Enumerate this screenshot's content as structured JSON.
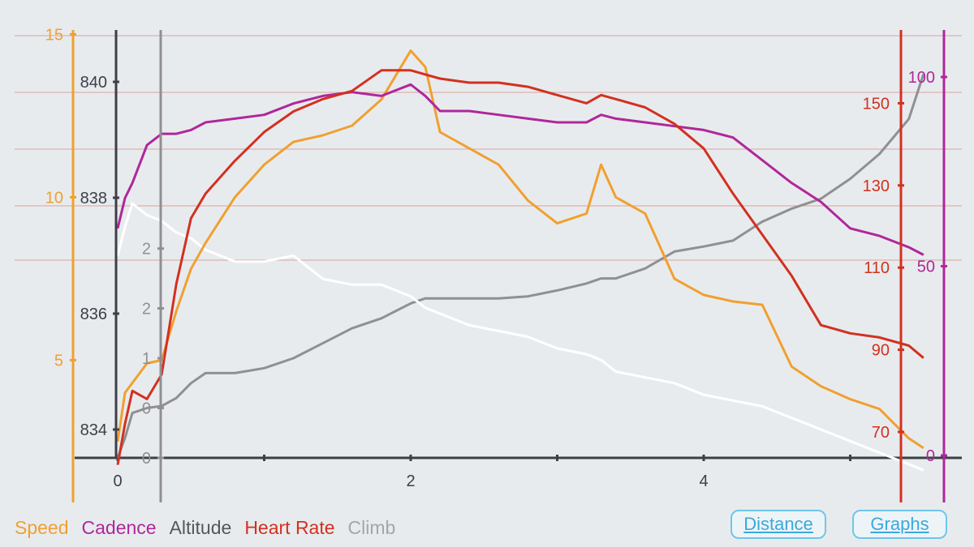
{
  "chart_data": {
    "type": "line",
    "x": [
      0,
      0.05,
      0.1,
      0.2,
      0.3,
      0.4,
      0.5,
      0.6,
      0.8,
      1.0,
      1.2,
      1.4,
      1.6,
      1.8,
      2.0,
      2.1,
      2.2,
      2.4,
      2.6,
      2.8,
      3.0,
      3.2,
      3.3,
      3.4,
      3.6,
      3.8,
      4.0,
      4.2,
      4.4,
      4.6,
      4.8,
      5.0,
      5.2,
      5.4,
      5.5
    ],
    "xticks": [
      "0",
      "2",
      "4"
    ],
    "series": [
      {
        "name": "Speed",
        "color": "#f0a030",
        "axis": "speed",
        "values": [
          2.5,
          4.0,
          4.3,
          4.9,
          5.0,
          6.5,
          7.8,
          8.6,
          10.0,
          11.0,
          11.7,
          11.9,
          12.2,
          13.0,
          14.5,
          14.0,
          12.0,
          11.5,
          11.0,
          9.9,
          9.2,
          9.5,
          11.0,
          10.0,
          9.5,
          7.5,
          7.0,
          6.8,
          6.7,
          4.8,
          4.2,
          3.8,
          3.5,
          2.6,
          2.3
        ]
      },
      {
        "name": "Cadence",
        "color": "#b0279a",
        "axis": "cadence",
        "values": [
          60,
          68,
          72,
          82,
          85,
          85,
          86,
          88,
          89,
          90,
          93,
          95,
          96,
          95,
          98,
          95,
          91,
          91,
          90,
          89,
          88,
          88,
          90,
          89,
          88,
          87,
          86,
          84,
          78,
          72,
          67,
          60,
          58,
          55,
          53
        ]
      },
      {
        "name": "Altitude",
        "color": "#3d3f47",
        "axis": "altitude",
        "values": [
          837,
          837.5,
          837.9,
          837.7,
          837.6,
          837.4,
          837.3,
          837.1,
          836.9,
          836.9,
          837.0,
          836.6,
          836.5,
          836.5,
          836.3,
          836.1,
          836.0,
          835.8,
          835.7,
          835.6,
          835.4,
          835.3,
          835.2,
          835.0,
          834.9,
          834.8,
          834.6,
          834.5,
          834.4,
          834.2,
          834.0,
          833.8,
          833.6,
          833.4,
          833.3
        ]
      },
      {
        "name": "Heart Rate",
        "color": "#d2311f",
        "axis": "hr",
        "values": [
          62,
          72,
          80,
          78,
          84,
          106,
          122,
          128,
          136,
          143,
          148,
          151,
          153,
          158,
          158,
          157,
          156,
          155,
          155,
          154,
          152,
          150,
          152,
          151,
          149,
          145,
          139,
          128,
          118,
          108,
          96,
          94,
          93,
          91,
          88
        ]
      },
      {
        "name": "Climb",
        "color": "#8f8f94",
        "axis": "climb",
        "values": [
          0,
          0.2,
          0.45,
          0.5,
          0.52,
          0.6,
          0.75,
          0.85,
          0.85,
          0.9,
          1.0,
          1.15,
          1.3,
          1.4,
          1.55,
          1.6,
          1.6,
          1.6,
          1.6,
          1.62,
          1.68,
          1.75,
          1.8,
          1.8,
          1.9,
          2.07,
          2.12,
          2.18,
          2.37,
          2.5,
          2.6,
          2.8,
          3.05,
          3.4,
          3.85
        ]
      }
    ],
    "axes": {
      "speed": {
        "range": [
          0,
          16.2
        ],
        "ticks": [
          "5",
          "10",
          "15"
        ],
        "color": "#f0a030"
      },
      "altitude": {
        "range": [
          833.0,
          841.2
        ],
        "ticks": [
          "834",
          "836",
          "838",
          "840"
        ],
        "color": "#3d3f47"
      },
      "climb": {
        "range": [
          0,
          3.99
        ],
        "ticks": [
          "0",
          "0",
          "1",
          "2",
          "2"
        ],
        "color": "#8f8f94"
      },
      "hr": {
        "range": [
          60,
          172
        ],
        "ticks": [
          "70",
          "90",
          "110",
          "130",
          "150"
        ],
        "color": "#d2311f"
      },
      "cadence": {
        "range": [
          0,
          108
        ],
        "ticks": [
          "0",
          "50",
          "100"
        ],
        "color": "#b0279a"
      }
    },
    "grid": true,
    "legend_position": "bottom-left"
  },
  "legend": [
    {
      "label": "Speed",
      "color": "#f0a030"
    },
    {
      "label": "Cadence",
      "color": "#b0279a"
    },
    {
      "label": "Altitude",
      "color": "#3d3f47"
    },
    {
      "label": "Heart Rate",
      "color": "#d2311f"
    },
    {
      "label": "Climb",
      "color": "#8f8f94"
    }
  ],
  "buttons": {
    "distance": "Distance",
    "graphs": "Graphs"
  }
}
